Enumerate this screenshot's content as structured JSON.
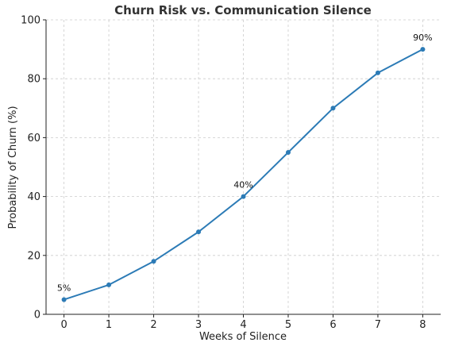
{
  "chart_data": {
    "type": "line",
    "title": "Churn Risk vs. Communication Silence",
    "xlabel": "Weeks of Silence",
    "ylabel": "Probability of Churn (%)",
    "x": [
      0,
      1,
      2,
      3,
      4,
      5,
      6,
      7,
      8
    ],
    "series": [
      {
        "values": [
          5,
          10,
          18,
          28,
          40,
          55,
          70,
          82,
          90
        ],
        "color": "#2c7bb6"
      }
    ],
    "xlim": [
      -0.4,
      8.4
    ],
    "ylim": [
      0,
      100
    ],
    "xticks": [
      0,
      1,
      2,
      3,
      4,
      5,
      6,
      7,
      8
    ],
    "yticks": [
      0,
      20,
      40,
      60,
      80,
      100
    ],
    "grid": true,
    "annotations": [
      {
        "x": 0,
        "y": 5,
        "text": "5%"
      },
      {
        "x": 4,
        "y": 40,
        "text": "40%"
      },
      {
        "x": 8,
        "y": 90,
        "text": "90%"
      }
    ]
  }
}
